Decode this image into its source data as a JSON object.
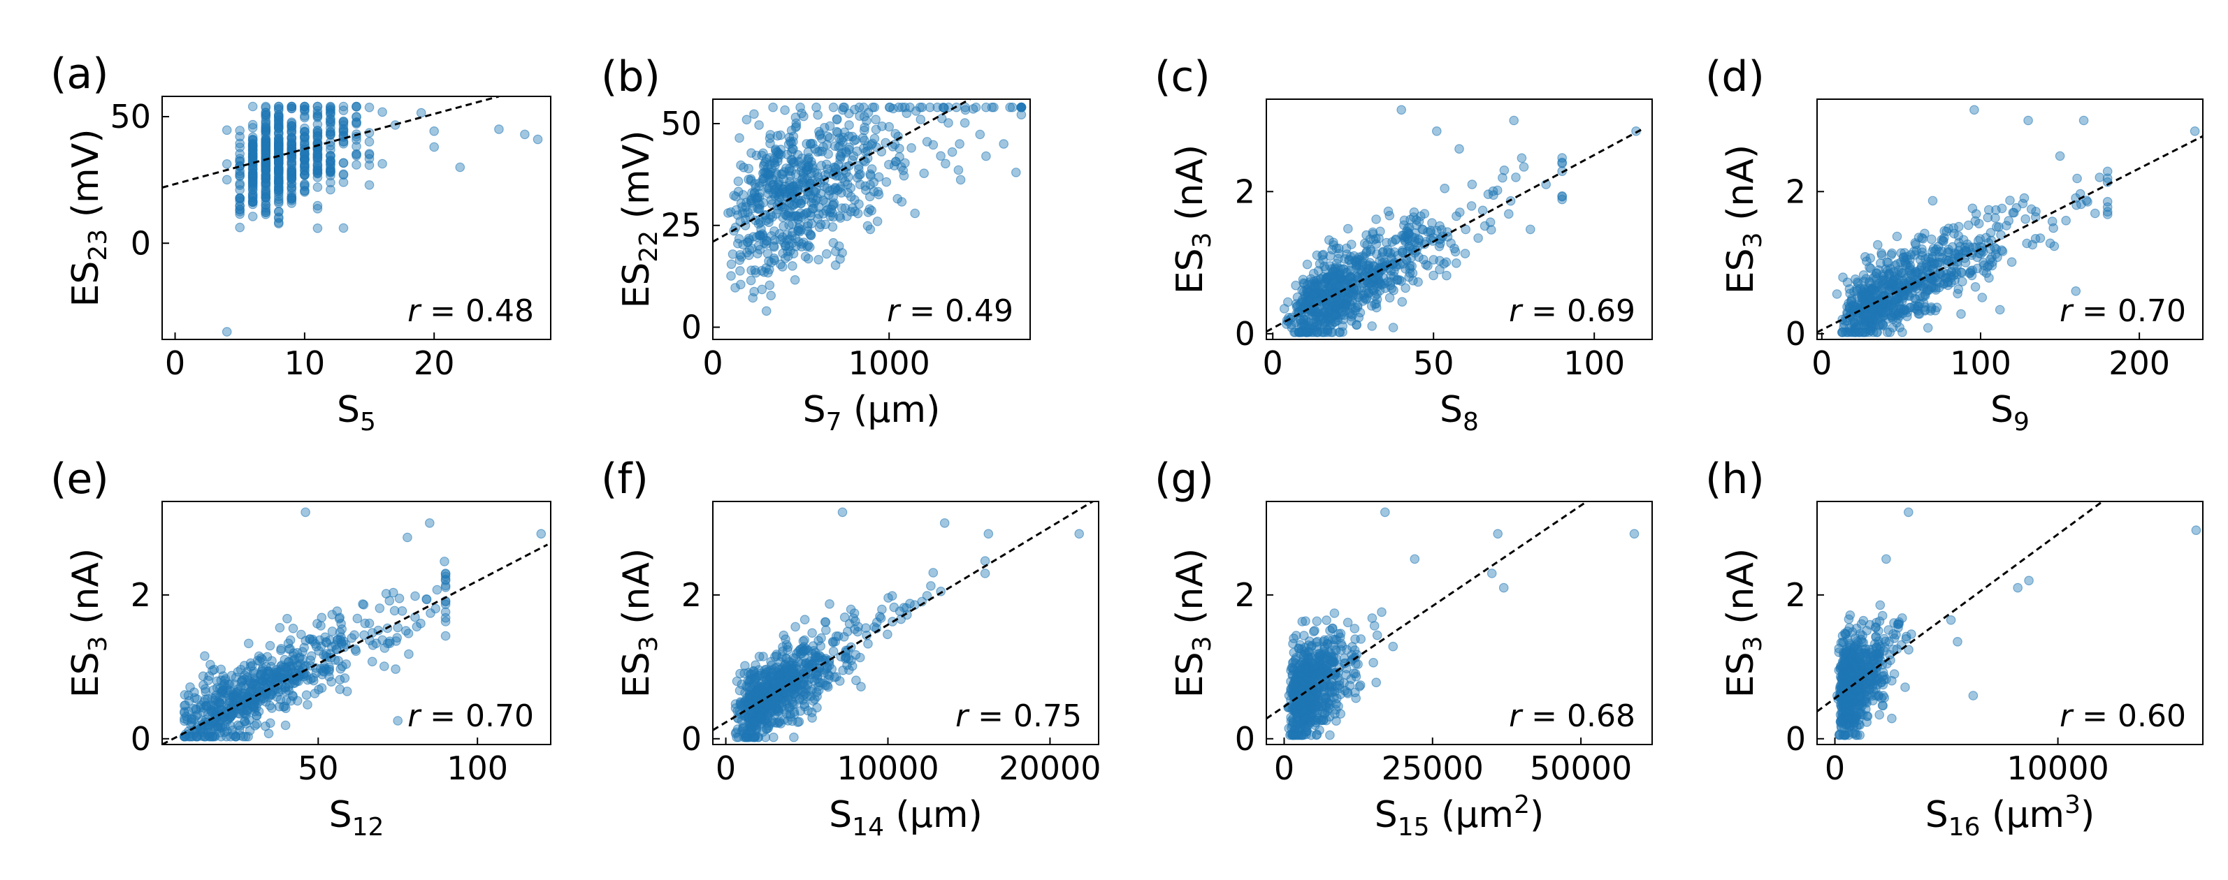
{
  "colors": {
    "points": "#1f77b4",
    "fit": "#000000"
  },
  "chart_data": [
    {
      "type": "scatter",
      "letter": "(a)",
      "xlabel": "S",
      "xsub": "5",
      "xunit": "",
      "xsup": "",
      "ylabel": "ES",
      "ysub": "23",
      "yunit": " (mV)",
      "xlim": [
        -1,
        29
      ],
      "ylim": [
        -38,
        58
      ],
      "xticks": [
        0,
        10,
        20
      ],
      "yticks": [
        0,
        50
      ],
      "xtick_labels": [
        "0",
        "10",
        "20"
      ],
      "ytick_labels": [
        "0",
        "50"
      ],
      "r": "r = 0.48",
      "fit": {
        "x": [
          -1,
          25
        ],
        "y": [
          22,
          58
        ]
      },
      "gen": {
        "seed": 11,
        "n": 600,
        "dist": "int",
        "xmin": 1,
        "xmax": 28,
        "mode": 6,
        "b": 1.2,
        "fitMid": 22,
        "fitSlope": 1.38,
        "noise": 10,
        "ymin": -8,
        "ymax": 54
      },
      "extra": [
        [
          4,
          -35
        ],
        [
          13,
          6
        ],
        [
          27,
          43
        ],
        [
          28,
          41
        ],
        [
          25,
          45
        ],
        [
          22,
          30
        ],
        [
          20,
          38
        ]
      ]
    },
    {
      "type": "scatter",
      "letter": "(b)",
      "xlabel": "S",
      "xsub": "7",
      "xunit": " (µm)",
      "xsup": "",
      "ylabel": "ES",
      "ysub": "22",
      "yunit": " (mV)",
      "xlim": [
        0,
        1800
      ],
      "ylim": [
        -3,
        56
      ],
      "xticks": [
        0,
        1000
      ],
      "yticks": [
        0,
        25,
        50
      ],
      "xtick_labels": [
        "0",
        "1000"
      ],
      "ytick_labels": [
        "0",
        "25",
        "50"
      ],
      "r": "r = 0.49",
      "fit": {
        "x": [
          0,
          1500
        ],
        "y": [
          21,
          57
        ]
      },
      "gen": {
        "seed": 23,
        "n": 650,
        "dist": "log",
        "xmin": 80,
        "xmax": 1750,
        "mode": 420,
        "b": 230,
        "fitMid": 21,
        "fitSlope": 0.024,
        "noise": 9,
        "ymin": 0,
        "ymax": 54
      },
      "extra": [
        [
          1650,
          45
        ],
        [
          1720,
          38
        ],
        [
          1550,
          42
        ],
        [
          1400,
          45
        ]
      ]
    },
    {
      "type": "scatter",
      "letter": "(c)",
      "xlabel": "S",
      "xsub": "8",
      "xunit": "",
      "xsup": "",
      "ylabel": "ES",
      "ysub": "3",
      "yunit": " (nA)",
      "xlim": [
        -2,
        118
      ],
      "ylim": [
        -0.08,
        3.3
      ],
      "xticks": [
        0,
        50,
        100
      ],
      "yticks": [
        0,
        2
      ],
      "xtick_labels": [
        "0",
        "50",
        "100"
      ],
      "ytick_labels": [
        "0",
        "2"
      ],
      "r": "r = 0.69",
      "fit": {
        "x": [
          -2,
          115
        ],
        "y": [
          0.03,
          2.88
        ]
      },
      "gen": {
        "seed": 37,
        "n": 700,
        "dist": "log",
        "xmin": 3,
        "xmax": 90,
        "mode": 21,
        "b": 11,
        "fitMid": 0.08,
        "fitSlope": 0.0244,
        "noise": 0.27,
        "ymin": 0.02,
        "ymax": 3.2
      },
      "extra": [
        [
          113,
          2.85
        ],
        [
          85,
          2.1
        ],
        [
          75,
          3.0
        ],
        [
          62,
          2.1
        ],
        [
          58,
          2.6
        ],
        [
          72,
          2.3
        ],
        [
          40,
          3.15
        ],
        [
          51,
          2.85
        ]
      ]
    },
    {
      "type": "scatter",
      "letter": "(d)",
      "xlabel": "S",
      "xsub": "9",
      "xunit": "",
      "xsup": "",
      "ylabel": "ES",
      "ysub": "3",
      "yunit": " (nA)",
      "xlim": [
        -3,
        240
      ],
      "ylim": [
        -0.08,
        3.3
      ],
      "xticks": [
        0,
        100,
        200
      ],
      "yticks": [
        0,
        2
      ],
      "xtick_labels": [
        "0",
        "100",
        "200"
      ],
      "ytick_labels": [
        "0",
        "2"
      ],
      "r": "r = 0.70",
      "fit": {
        "x": [
          -3,
          240
        ],
        "y": [
          0.02,
          2.78
        ]
      },
      "gen": {
        "seed": 41,
        "n": 700,
        "dist": "log",
        "xmin": 5,
        "xmax": 180,
        "mode": 45,
        "b": 22,
        "fitMid": 0.06,
        "fitSlope": 0.0113,
        "noise": 0.27,
        "ymin": 0.02,
        "ymax": 3.2
      },
      "extra": [
        [
          235,
          2.85
        ],
        [
          175,
          2.2
        ],
        [
          165,
          3.0
        ],
        [
          130,
          3.0
        ],
        [
          96,
          3.15
        ],
        [
          150,
          2.5
        ],
        [
          160,
          0.6
        ]
      ]
    },
    {
      "type": "scatter",
      "letter": "(e)",
      "xlabel": "S",
      "xsub": "12",
      "xunit": "",
      "xsup": "",
      "ylabel": "ES",
      "ysub": "3",
      "yunit": " (nA)",
      "xlim": [
        1,
        123
      ],
      "ylim": [
        -0.08,
        3.3
      ],
      "xticks": [
        50,
        100
      ],
      "yticks": [
        0,
        2
      ],
      "xtick_labels": [
        "50",
        "100"
      ],
      "ytick_labels": [
        "0",
        "2"
      ],
      "r": "r = 0.70",
      "fit": {
        "x": [
          1,
          122
        ],
        "y": [
          -0.08,
          2.7
        ]
      },
      "gen": {
        "seed": 53,
        "n": 650,
        "dist": "log",
        "xmin": 8,
        "xmax": 90,
        "mode": 27,
        "b": 13,
        "fitMid": -0.02,
        "fitSlope": 0.0225,
        "noise": 0.26,
        "ymin": 0.03,
        "ymax": 3.2
      },
      "extra": [
        [
          120,
          2.85
        ],
        [
          90,
          2.3
        ],
        [
          85,
          3.0
        ],
        [
          78,
          2.8
        ],
        [
          46,
          3.15
        ],
        [
          75,
          0.25
        ]
      ]
    },
    {
      "type": "scatter",
      "letter": "(f)",
      "xlabel": "S",
      "xsub": "14",
      "xunit": " (µm)",
      "xsup": "",
      "ylabel": "ES",
      "ysub": "3",
      "yunit": " (nA)",
      "xlim": [
        -800,
        23000
      ],
      "ylim": [
        -0.08,
        3.3
      ],
      "xticks": [
        0,
        10000,
        20000
      ],
      "yticks": [
        0,
        2
      ],
      "xtick_labels": [
        "0",
        "10000",
        "20000"
      ],
      "ytick_labels": [
        "0",
        "2"
      ],
      "r": "r = 0.75",
      "fit": {
        "x": [
          -800,
          23000
        ],
        "y": [
          0.12,
          3.35
        ]
      },
      "gen": {
        "seed": 67,
        "n": 700,
        "dist": "log",
        "xmin": 600,
        "xmax": 16000,
        "mode": 2800,
        "b": 1400,
        "fitMid": 0.23,
        "fitSlope": 0.000136,
        "noise": 0.27,
        "ymin": 0.02,
        "ymax": 3.2
      },
      "extra": [
        [
          21800,
          2.85
        ],
        [
          16000,
          2.3
        ],
        [
          16200,
          2.85
        ],
        [
          13500,
          3.0
        ],
        [
          7200,
          3.15
        ],
        [
          9500,
          1.7
        ]
      ]
    },
    {
      "type": "scatter",
      "letter": "(g)",
      "xlabel": "S",
      "xsub": "15",
      "xunit": " (µm",
      "xsup": "2",
      "ylabel": "ES",
      "ysub": "3",
      "yunit": " (nA)",
      "xlim": [
        -3000,
        62000
      ],
      "ylim": [
        -0.08,
        3.3
      ],
      "xticks": [
        0,
        25000,
        50000
      ],
      "yticks": [
        0,
        2
      ],
      "xtick_labels": [
        "0",
        "25000",
        "50000"
      ],
      "ytick_labels": [
        "0",
        "2"
      ],
      "r": "r = 0.68",
      "fit": {
        "x": [
          -3000,
          51000
        ],
        "y": [
          0.28,
          3.3
        ]
      },
      "gen": {
        "seed": 79,
        "n": 700,
        "dist": "log",
        "xmin": 300,
        "xmax": 36000,
        "mode": 3500,
        "b": 2600,
        "fitMid": 0.45,
        "fitSlope": 5.59e-05,
        "noise": 0.33,
        "ymin": 0.05,
        "ymax": 3.2
      },
      "extra": [
        [
          59000,
          2.85
        ],
        [
          36000,
          2.85
        ],
        [
          35000,
          2.3
        ],
        [
          37000,
          2.1
        ],
        [
          17000,
          3.15
        ],
        [
          22000,
          2.5
        ]
      ]
    },
    {
      "type": "scatter",
      "letter": "(h)",
      "xlabel": "S",
      "xsub": "16",
      "xunit": " (µm",
      "xsup": "3",
      "ylabel": "ES",
      "ysub": "3",
      "yunit": " (nA)",
      "xlim": [
        -800,
        16500
      ],
      "ylim": [
        -0.08,
        3.3
      ],
      "xticks": [
        0,
        10000
      ],
      "yticks": [
        0,
        2
      ],
      "xtick_labels": [
        "0",
        "10000"
      ],
      "ytick_labels": [
        "0",
        "2"
      ],
      "r": "r = 0.60",
      "fit": {
        "x": [
          -800,
          12000
        ],
        "y": [
          0.38,
          3.3
        ]
      },
      "gen": {
        "seed": 97,
        "n": 700,
        "dist": "log",
        "xmin": 50,
        "xmax": 7000,
        "mode": 700,
        "b": 700,
        "fitMid": 0.55,
        "fitSlope": 0.000228,
        "noise": 0.33,
        "ymin": 0.05,
        "ymax": 3.2
      },
      "extra": [
        [
          16200,
          2.9
        ],
        [
          8200,
          2.1
        ],
        [
          8700,
          2.2
        ],
        [
          5500,
          1.35
        ],
        [
          3300,
          3.15
        ],
        [
          2300,
          2.5
        ],
        [
          6200,
          0.6
        ]
      ]
    }
  ]
}
